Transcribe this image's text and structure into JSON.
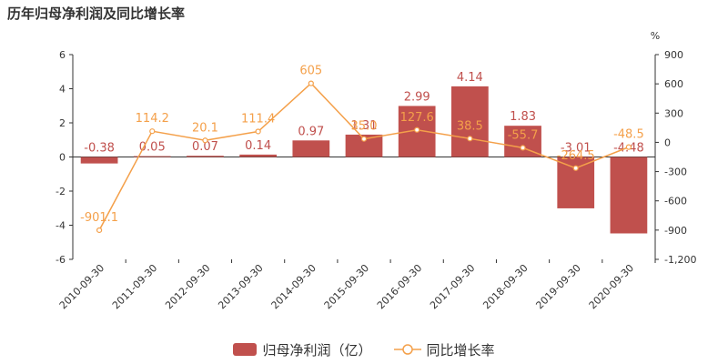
{
  "title": "历年归母净利润及同比增长率",
  "chart_data": {
    "type": "bar",
    "categories": [
      "2010-09-30",
      "2011-09-30",
      "2012-09-30",
      "2013-09-30",
      "2014-09-30",
      "2015-09-30",
      "2016-09-30",
      "2017-09-30",
      "2018-09-30",
      "2019-09-30",
      "2020-09-30"
    ],
    "series": [
      {
        "name": "归母净利润（亿）",
        "type": "bar",
        "axis": "left",
        "values": [
          -0.38,
          0.05,
          0.07,
          0.14,
          0.97,
          1.31,
          2.99,
          4.14,
          1.83,
          -3.01,
          -4.48
        ],
        "labels": [
          "-0.38",
          "0.05",
          "0.07",
          "0.14",
          "0.97",
          "1.31",
          "2.99",
          "4.14",
          "1.83",
          "-3.01",
          "-4.48"
        ],
        "color": "#c0504d"
      },
      {
        "name": "同比增长率",
        "type": "line",
        "axis": "right",
        "values": [
          -901.1,
          114.2,
          20.1,
          111.4,
          605,
          35.0,
          127.6,
          38.5,
          -55.7,
          -264.5,
          -48.5
        ],
        "labels": [
          "-901.1",
          "114.2",
          "20.1",
          "111.4",
          "605",
          "35.0",
          "127.6",
          "38.5",
          "-55.7",
          "-264.5",
          "-48.5"
        ],
        "color": "#f4a04a"
      }
    ],
    "left_axis": {
      "range": [
        -6,
        6
      ],
      "ticks": [
        "6",
        "4",
        "2",
        "0",
        "-2",
        "-4",
        "-6"
      ]
    },
    "right_axis": {
      "unit": "%",
      "range": [
        -1200,
        900
      ],
      "ticks": [
        "900",
        "600",
        "300",
        "0",
        "-300",
        "-600",
        "-900",
        "-1,200"
      ]
    },
    "legend_position": "bottom",
    "grid": false
  }
}
